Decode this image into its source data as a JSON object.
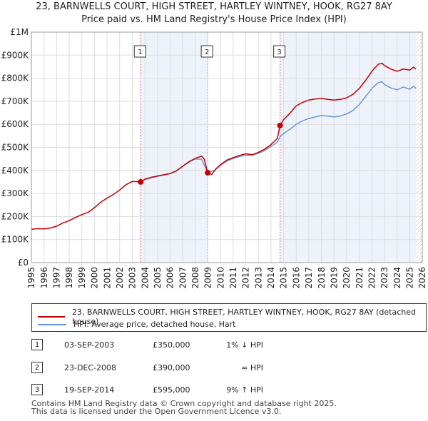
{
  "title_line1": "23, BARNWELLS COURT, HIGH STREET, HARTLEY WINTNEY, HOOK, RG27 8AY",
  "title_line2": "Price paid vs. HM Land Registry's House Price Index (HPI)",
  "chart_data": {
    "type": "line",
    "y_ticks": [
      "£0",
      "£100K",
      "£200K",
      "£300K",
      "£400K",
      "£500K",
      "£600K",
      "£700K",
      "£800K",
      "£900K",
      "£1M"
    ],
    "ylim": [
      0,
      1000000
    ],
    "xlim": [
      1995,
      2026
    ],
    "x_ticks": [
      "1995",
      "1996",
      "1997",
      "1998",
      "1999",
      "2000",
      "2001",
      "2002",
      "2003",
      "2004",
      "2005",
      "2006",
      "2007",
      "2008",
      "2009",
      "2010",
      "2011",
      "2012",
      "2013",
      "2014",
      "2015",
      "2016",
      "2017",
      "2018",
      "2019",
      "2020",
      "2021",
      "2022",
      "2023",
      "2024",
      "2025",
      "2026"
    ],
    "shaded_periods": [
      [
        2003.67,
        2008.98
      ],
      [
        2014.72,
        2025.5
      ]
    ],
    "hatched_after": 2025.5,
    "series": [
      {
        "name": "23, BARNWELLS COURT, HIGH STREET, HARTLEY WINTNEY, HOOK, RG27 8AY (detached house)",
        "color": "#c00000",
        "x": [
          1995.0,
          1995.5,
          1996.0,
          1996.5,
          1997.0,
          1997.5,
          1998.0,
          1998.5,
          1999.0,
          1999.5,
          2000.0,
          2000.5,
          2001.0,
          2001.5,
          2002.0,
          2002.5,
          2003.0,
          2003.67,
          2004.0,
          2004.5,
          2005.0,
          2005.5,
          2006.0,
          2006.5,
          2007.0,
          2007.5,
          2008.0,
          2008.5,
          2008.7,
          2008.98,
          2009.3,
          2009.6,
          2010.0,
          2010.5,
          2011.0,
          2011.5,
          2012.0,
          2012.5,
          2013.0,
          2013.5,
          2014.0,
          2014.5,
          2014.72,
          2015.0,
          2015.5,
          2016.0,
          2016.5,
          2017.0,
          2017.5,
          2018.0,
          2018.5,
          2019.0,
          2019.5,
          2020.0,
          2020.5,
          2021.0,
          2021.5,
          2022.0,
          2022.5,
          2022.8,
          2023.0,
          2023.5,
          2024.0,
          2024.5,
          2025.0,
          2025.3,
          2025.5
        ],
        "values": [
          145000,
          147000,
          146000,
          150000,
          158000,
          172000,
          182000,
          196000,
          208000,
          218000,
          238000,
          262000,
          280000,
          295000,
          315000,
          338000,
          352000,
          350000,
          362000,
          370000,
          376000,
          381000,
          386000,
          398000,
          418000,
          438000,
          452000,
          462000,
          450000,
          390000,
          382000,
          405000,
          425000,
          445000,
          455000,
          465000,
          472000,
          468000,
          478000,
          492000,
          512000,
          538000,
          595000,
          620000,
          648000,
          680000,
          695000,
          705000,
          710000,
          712000,
          708000,
          705000,
          708000,
          715000,
          730000,
          755000,
          790000,
          830000,
          860000,
          865000,
          855000,
          840000,
          830000,
          840000,
          835000,
          848000,
          840000
        ]
      },
      {
        "name": "HPI: Average price, detached house, Hart",
        "color": "#6a97d4",
        "x": [
          2003.67,
          2004.0,
          2004.5,
          2005.0,
          2005.5,
          2006.0,
          2006.5,
          2007.0,
          2007.5,
          2008.0,
          2008.5,
          2008.98,
          2009.5,
          2010.0,
          2010.5,
          2011.0,
          2011.5,
          2012.0,
          2012.5,
          2013.0,
          2013.5,
          2014.0,
          2014.5,
          2014.72,
          2015.0,
          2015.5,
          2016.0,
          2016.5,
          2017.0,
          2017.5,
          2018.0,
          2018.5,
          2019.0,
          2019.5,
          2020.0,
          2020.5,
          2021.0,
          2021.5,
          2022.0,
          2022.5,
          2022.8,
          2023.0,
          2023.5,
          2024.0,
          2024.5,
          2025.0,
          2025.3,
          2025.5
        ],
        "values": [
          353000,
          360000,
          368000,
          374000,
          380000,
          386000,
          398000,
          418000,
          436000,
          450000,
          448000,
          392000,
          400000,
          422000,
          440000,
          452000,
          460000,
          466000,
          466000,
          474000,
          486000,
          504000,
          522000,
          546000,
          560000,
          578000,
          600000,
          615000,
          625000,
          632000,
          638000,
          636000,
          632000,
          636000,
          645000,
          660000,
          685000,
          720000,
          755000,
          780000,
          785000,
          772000,
          758000,
          750000,
          762000,
          752000,
          765000,
          755000
        ]
      }
    ],
    "sales": [
      {
        "label": "1",
        "x": 2003.67,
        "value": 350000
      },
      {
        "label": "2",
        "x": 2008.98,
        "value": 390000
      },
      {
        "label": "3",
        "x": 2014.72,
        "value": 595000
      }
    ]
  },
  "legend": {
    "property_label": "23, BARNWELLS COURT, HIGH STREET, HARTLEY WINTNEY, HOOK, RG27 8AY (detached house)",
    "hpi_label": "HPI: Average price, detached house, Hart",
    "property_color": "#c00000",
    "hpi_color": "#6a97d4"
  },
  "transactions": [
    {
      "num": "1",
      "date": "03-SEP-2003",
      "price": "£350,000",
      "hpi": "1% ↓ HPI"
    },
    {
      "num": "2",
      "date": "23-DEC-2008",
      "price": "£390,000",
      "hpi": "≈ HPI"
    },
    {
      "num": "3",
      "date": "19-SEP-2014",
      "price": "£595,000",
      "hpi": "9% ↑ HPI"
    }
  ],
  "footer_line1": "Contains HM Land Registry data © Crown copyright and database right 2025.",
  "footer_line2": "This data is licensed under the Open Government Licence v3.0."
}
